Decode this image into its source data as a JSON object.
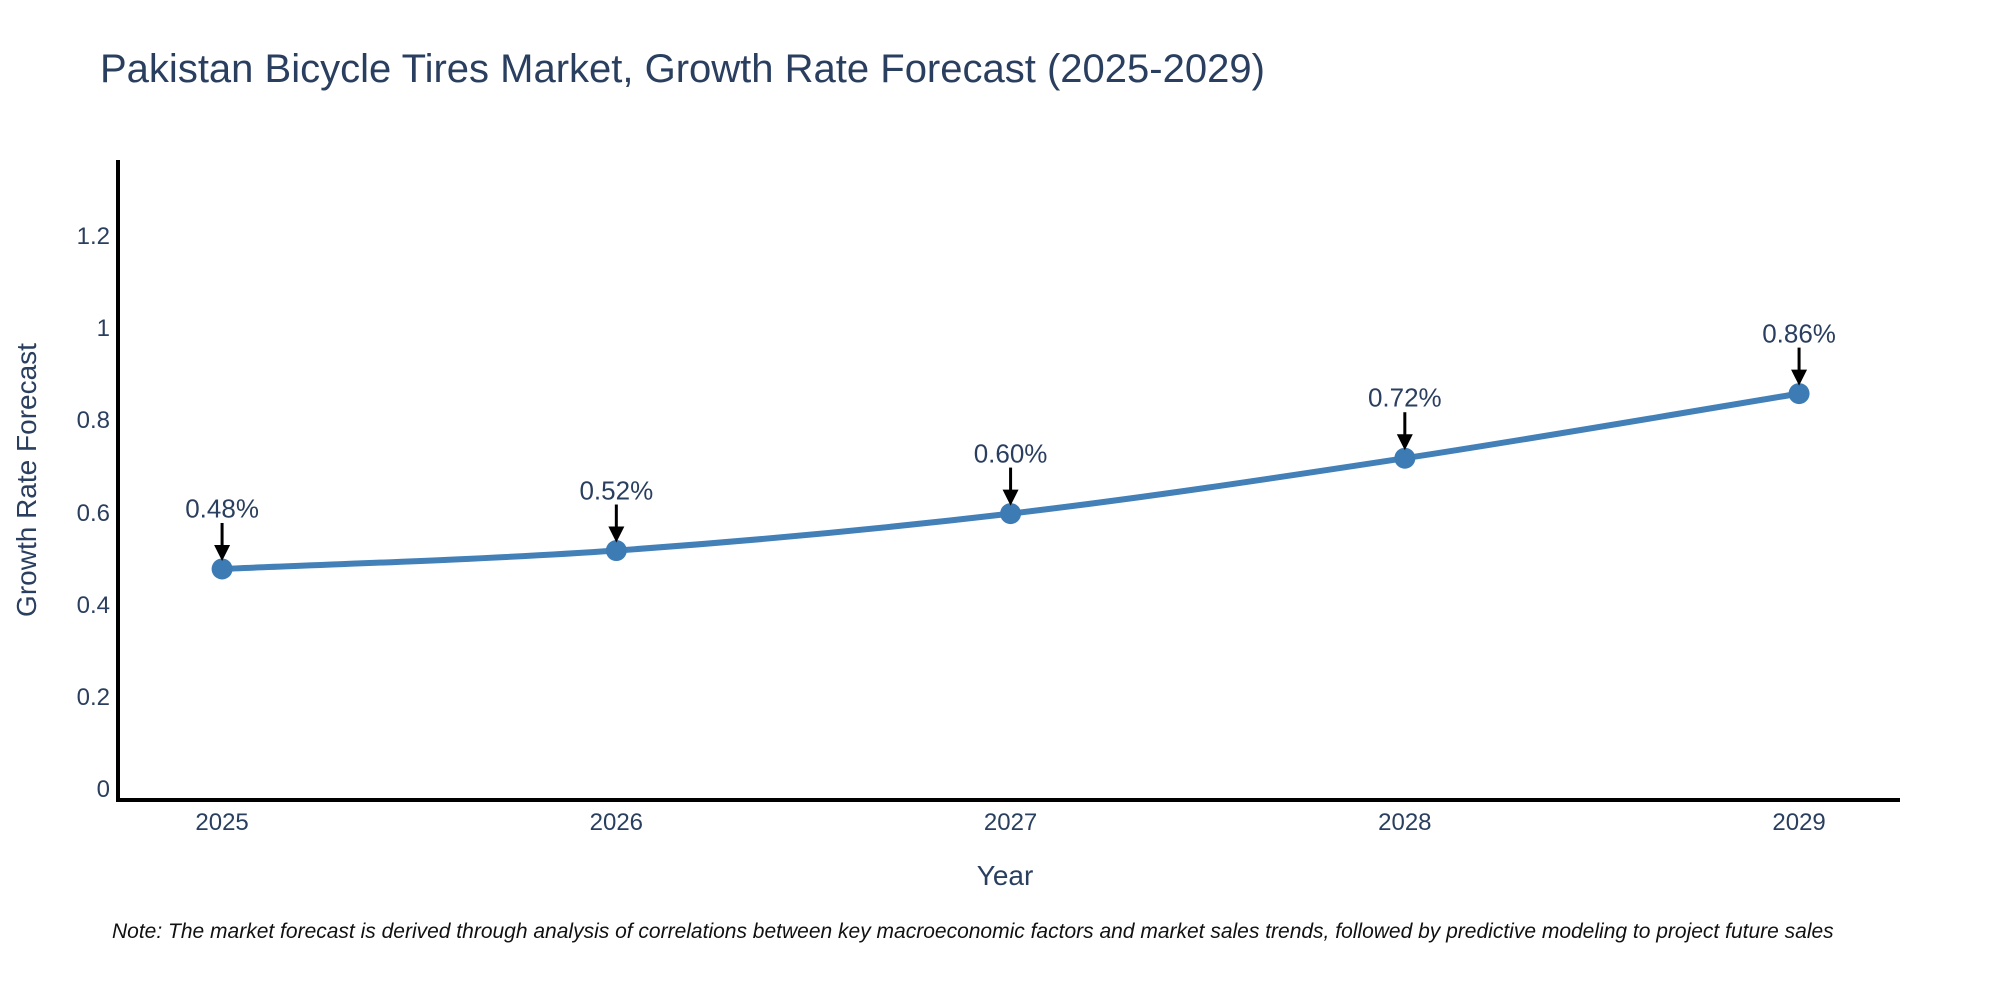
{
  "page": {
    "background": "#ffffff"
  },
  "footnote": {
    "text": "Note: The market forecast is derived through analysis of correlations between key macroeconomic factors and market sales trends, followed by predictive modeling to project future sales",
    "color": "#111111"
  },
  "chart_data": {
    "type": "line",
    "title": "Pakistan Bicycle Tires Market, Growth Rate Forecast (2025-2029)",
    "xlabel": "Year",
    "ylabel": "Growth Rate Forecast",
    "x": [
      2025,
      2026,
      2027,
      2028,
      2029
    ],
    "y": [
      0.48,
      0.52,
      0.6,
      0.72,
      0.86
    ],
    "point_labels": [
      "0.48%",
      "0.52%",
      "0.60%",
      "0.72%",
      "0.86%"
    ],
    "xtick_labels": [
      "2025",
      "2026",
      "2027",
      "2028",
      "2029"
    ],
    "ytick_values": [
      0,
      0.2,
      0.4,
      0.6,
      0.8,
      1,
      1.2
    ],
    "ytick_labels": [
      "0",
      "0.2",
      "0.4",
      "0.6",
      "0.8",
      "1",
      "1.2"
    ],
    "xlim": [
      2024.736,
      2029.256
    ],
    "ylim": [
      -0.0206,
      1.3662
    ],
    "grid": false,
    "legend": false,
    "line_shape": "spline",
    "line_color": "#4380b8",
    "marker_color": "#3d7bb5",
    "axis_color": "#000000",
    "arrow_color": "#000000",
    "text_color": "#2a3f5f"
  }
}
